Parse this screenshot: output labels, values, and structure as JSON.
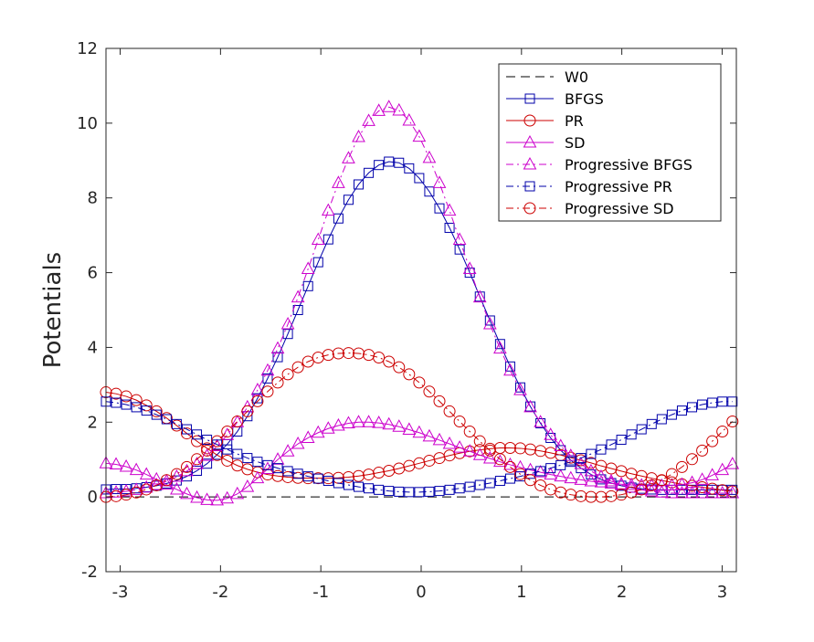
{
  "chart_data": {
    "type": "line",
    "title": "",
    "xlabel": "",
    "ylabel": "Potentials",
    "xlim": [
      -3.14159,
      3.14159
    ],
    "ylim": [
      -2,
      12
    ],
    "x_ticks": [
      -3,
      -2,
      -1,
      0,
      1,
      2,
      3
    ],
    "x_tick_labels": [
      "-3",
      "-2",
      "-1",
      "0",
      "1",
      "2",
      "3"
    ],
    "y_ticks": [
      -2,
      0,
      2,
      4,
      6,
      8,
      10,
      12
    ],
    "y_tick_labels": [
      "-2",
      "0",
      "2",
      "4",
      "6",
      "8",
      "10",
      "12"
    ],
    "grid": false,
    "legend_position": "top-right",
    "x": [
      -3.1416,
      -3.0409,
      -2.9402,
      -2.8394,
      -2.7387,
      -2.638,
      -2.5373,
      -2.4366,
      -2.3358,
      -2.2351,
      -2.1344,
      -2.0337,
      -1.933,
      -1.8322,
      -1.7315,
      -1.6308,
      -1.5301,
      -1.4294,
      -1.3286,
      -1.2279,
      -1.1272,
      -1.0265,
      -0.9258,
      -0.825,
      -0.7243,
      -0.6236,
      -0.5229,
      -0.4222,
      -0.3214,
      -0.2207,
      -0.12,
      -0.0193,
      0.0814,
      0.1822,
      0.2829,
      0.3836,
      0.4843,
      0.585,
      0.6858,
      0.7865,
      0.8872,
      0.9879,
      1.0886,
      1.1894,
      1.2901,
      1.3908,
      1.4915,
      1.5922,
      1.693,
      1.7937,
      1.8944,
      1.9951,
      2.0958,
      2.1966,
      2.2973,
      2.398,
      2.4987,
      2.5994,
      2.7002,
      2.8009,
      2.9016,
      3.0023,
      3.103
    ],
    "series": [
      {
        "name": "W0",
        "color": "#000000",
        "dash": "10,6",
        "marker": "none",
        "values": [
          0,
          0,
          0,
          0,
          0,
          0,
          0,
          0,
          0,
          0,
          0,
          0,
          0,
          0,
          0,
          0,
          0,
          0,
          0,
          0,
          0,
          0,
          0,
          0,
          0,
          0,
          0,
          0,
          0,
          0,
          0,
          0,
          0,
          0,
          0,
          0,
          0,
          0,
          0,
          0,
          0,
          0,
          0,
          0,
          0,
          0,
          0,
          0,
          0,
          0,
          0,
          0,
          0,
          0,
          0,
          0,
          0,
          0,
          0,
          0,
          0,
          0,
          0
        ]
      },
      {
        "name": "BFGS",
        "color": "#0000aa",
        "dash": "",
        "marker": "square",
        "values": [
          0.2,
          0.21,
          0.21,
          0.23,
          0.26,
          0.3,
          0.36,
          0.44,
          0.55,
          0.7,
          0.89,
          1.13,
          1.41,
          1.75,
          2.16,
          2.64,
          3.17,
          3.74,
          4.36,
          5.0,
          5.64,
          6.28,
          6.89,
          7.45,
          7.95,
          8.36,
          8.67,
          8.88,
          8.97,
          8.94,
          8.79,
          8.53,
          8.17,
          7.72,
          7.2,
          6.62,
          6.0,
          5.36,
          4.72,
          4.09,
          3.49,
          2.93,
          2.42,
          1.97,
          1.58,
          1.25,
          0.98,
          0.77,
          0.6,
          0.47,
          0.37,
          0.3,
          0.25,
          0.22,
          0.2,
          0.19,
          0.19,
          0.19,
          0.19,
          0.19,
          0.19,
          0.19,
          0.19
        ]
      },
      {
        "name": "PR",
        "color": "#cc0000",
        "dash": "",
        "marker": "circle",
        "values": [
          2.8,
          2.76,
          2.69,
          2.59,
          2.45,
          2.29,
          2.11,
          1.91,
          1.7,
          1.49,
          1.3,
          1.12,
          0.97,
          0.84,
          0.74,
          0.66,
          0.6,
          0.56,
          0.53,
          0.51,
          0.5,
          0.5,
          0.5,
          0.51,
          0.53,
          0.56,
          0.6,
          0.65,
          0.7,
          0.76,
          0.83,
          0.9,
          0.97,
          1.04,
          1.11,
          1.17,
          1.22,
          1.26,
          1.29,
          1.31,
          1.31,
          1.3,
          1.27,
          1.23,
          1.18,
          1.12,
          1.05,
          0.98,
          0.91,
          0.83,
          0.76,
          0.69,
          0.62,
          0.56,
          0.5,
          0.44,
          0.39,
          0.34,
          0.3,
          0.26,
          0.22,
          0.18,
          0.15
        ]
      },
      {
        "name": "SD",
        "color": "#cc00cc",
        "dash": "",
        "marker": "triangle",
        "values": [
          0.9,
          0.87,
          0.81,
          0.72,
          0.6,
          0.47,
          0.33,
          0.2,
          0.08,
          -0.02,
          -0.08,
          -0.09,
          -0.04,
          0.08,
          0.27,
          0.5,
          0.75,
          1.0,
          1.22,
          1.42,
          1.58,
          1.72,
          1.83,
          1.91,
          1.97,
          2.0,
          2.0,
          1.98,
          1.94,
          1.88,
          1.8,
          1.72,
          1.62,
          1.52,
          1.42,
          1.32,
          1.22,
          1.12,
          1.03,
          0.94,
          0.86,
          0.79,
          0.72,
          0.66,
          0.6,
          0.55,
          0.5,
          0.46,
          0.42,
          0.39,
          0.36,
          0.34,
          0.32,
          0.31,
          0.3,
          0.3,
          0.31,
          0.33,
          0.38,
          0.46,
          0.58,
          0.72,
          0.88
        ]
      },
      {
        "name": "Progressive BFGS",
        "color": "#cc00cc",
        "dash": "8,4,2,4",
        "marker": "triangle",
        "values": [
          0.1,
          0.12,
          0.15,
          0.19,
          0.25,
          0.32,
          0.42,
          0.54,
          0.69,
          0.88,
          1.1,
          1.36,
          1.66,
          2.0,
          2.4,
          2.86,
          3.38,
          3.97,
          4.62,
          5.34,
          6.1,
          6.88,
          7.66,
          8.4,
          9.06,
          9.63,
          10.06,
          10.33,
          10.43,
          10.34,
          10.07,
          9.64,
          9.07,
          8.4,
          7.66,
          6.88,
          6.1,
          5.34,
          4.62,
          3.97,
          3.38,
          2.86,
          2.4,
          2.0,
          1.66,
          1.36,
          1.1,
          0.88,
          0.69,
          0.54,
          0.42,
          0.32,
          0.25,
          0.19,
          0.15,
          0.12,
          0.1,
          0.1,
          0.1,
          0.1,
          0.1,
          0.1,
          0.1
        ]
      },
      {
        "name": "Progressive PR",
        "color": "#0000aa",
        "dash": "8,4,2,4",
        "marker": "square",
        "values": [
          2.55,
          2.52,
          2.47,
          2.4,
          2.31,
          2.2,
          2.08,
          1.95,
          1.81,
          1.67,
          1.53,
          1.4,
          1.27,
          1.15,
          1.04,
          0.94,
          0.85,
          0.77,
          0.69,
          0.62,
          0.55,
          0.49,
          0.43,
          0.37,
          0.32,
          0.27,
          0.23,
          0.19,
          0.16,
          0.14,
          0.13,
          0.13,
          0.14,
          0.16,
          0.19,
          0.23,
          0.27,
          0.32,
          0.37,
          0.43,
          0.49,
          0.55,
          0.62,
          0.69,
          0.77,
          0.85,
          0.94,
          1.04,
          1.15,
          1.27,
          1.4,
          1.53,
          1.67,
          1.81,
          1.95,
          2.08,
          2.2,
          2.31,
          2.4,
          2.47,
          2.52,
          2.55,
          2.55
        ]
      },
      {
        "name": "Progressive SD",
        "color": "#cc0000",
        "dash": "8,4,2,4",
        "marker": "circle",
        "values": [
          0.0,
          0.02,
          0.06,
          0.12,
          0.2,
          0.31,
          0.45,
          0.61,
          0.8,
          1.01,
          1.24,
          1.49,
          1.75,
          2.02,
          2.29,
          2.56,
          2.82,
          3.06,
          3.28,
          3.47,
          3.62,
          3.73,
          3.8,
          3.84,
          3.85,
          3.84,
          3.8,
          3.73,
          3.62,
          3.47,
          3.28,
          3.06,
          2.82,
          2.56,
          2.29,
          2.02,
          1.75,
          1.49,
          1.24,
          1.01,
          0.8,
          0.61,
          0.45,
          0.31,
          0.2,
          0.12,
          0.06,
          0.02,
          0.0,
          0.0,
          0.02,
          0.06,
          0.12,
          0.2,
          0.31,
          0.45,
          0.61,
          0.8,
          1.01,
          1.24,
          1.49,
          1.75,
          2.02
        ]
      }
    ]
  }
}
